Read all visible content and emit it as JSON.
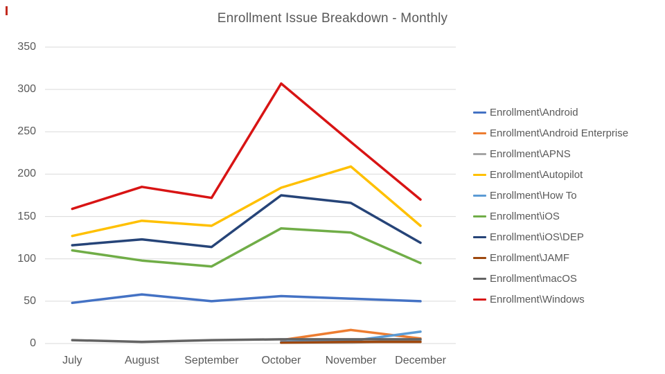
{
  "chart_data": {
    "type": "line",
    "title": "Enrollment Issue Breakdown - Monthly",
    "categories": [
      "July",
      "August",
      "September",
      "October",
      "November",
      "December"
    ],
    "series": [
      {
        "name": "Enrollment\\Android",
        "color": "#4472C4",
        "values": [
          48,
          58,
          50,
          56,
          53,
          50
        ]
      },
      {
        "name": "Enrollment\\Android Enterprise",
        "color": "#ED7D31",
        "values": [
          null,
          null,
          null,
          4,
          16,
          6
        ]
      },
      {
        "name": "Enrollment\\APNS",
        "color": "#A5A5A5",
        "values": [
          null,
          null,
          null,
          1,
          1,
          4
        ]
      },
      {
        "name": "Enrollment\\Autopilot",
        "color": "#FFC000",
        "values": [
          127,
          145,
          139,
          184,
          209,
          139
        ]
      },
      {
        "name": "Enrollment\\How To",
        "color": "#5B9BD5",
        "values": [
          null,
          null,
          null,
          2,
          3,
          14
        ]
      },
      {
        "name": "Enrollment\\iOS",
        "color": "#70AD47",
        "values": [
          110,
          98,
          91,
          136,
          131,
          95
        ]
      },
      {
        "name": "Enrollment\\iOS\\DEP",
        "color": "#264478",
        "values": [
          116,
          123,
          114,
          175,
          166,
          119
        ]
      },
      {
        "name": "Enrollment\\JAMF",
        "color": "#9E480E",
        "values": [
          null,
          null,
          null,
          1,
          2,
          2
        ]
      },
      {
        "name": "Enrollment\\macOS",
        "color": "#636363",
        "values": [
          4,
          2,
          4,
          5,
          5,
          5
        ]
      },
      {
        "name": "Enrollment\\Windows",
        "color": "#D81414",
        "values": [
          159,
          185,
          172,
          307,
          238,
          170
        ]
      }
    ],
    "ylim": [
      0,
      350
    ],
    "ytick_step": 50,
    "grid": true,
    "gridline_color": "#D9D9D9",
    "axis_text_color": "#595959",
    "legend_position": "right"
  }
}
